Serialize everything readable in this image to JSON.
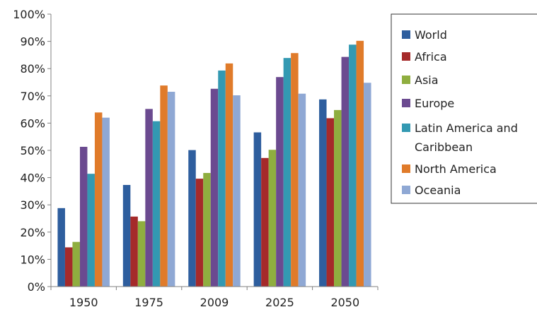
{
  "chart_data": {
    "type": "bar",
    "title": "",
    "xlabel": "",
    "ylabel": "",
    "ylim": [
      0,
      100
    ],
    "y_ticks": [
      "0%",
      "10%",
      "20%",
      "30%",
      "40%",
      "50%",
      "60%",
      "70%",
      "80%",
      "90%",
      "100%"
    ],
    "categories": [
      "1950",
      "1975",
      "2009",
      "2025",
      "2050"
    ],
    "grid": false,
    "legend_position": "right",
    "series": [
      {
        "name": "World",
        "color": "#2E5E9E",
        "values": [
          28.8,
          37.3,
          50.1,
          56.6,
          68.7
        ]
      },
      {
        "name": "Africa",
        "color": "#A52A2A",
        "values": [
          14.4,
          25.7,
          39.6,
          47.2,
          61.8
        ]
      },
      {
        "name": "Asia",
        "color": "#8FAE3F",
        "values": [
          16.4,
          24.0,
          41.7,
          50.2,
          64.8
        ]
      },
      {
        "name": "Europe",
        "color": "#6B4A90",
        "values": [
          51.3,
          65.2,
          72.6,
          76.9,
          84.3
        ]
      },
      {
        "name": "Latin America and Caribbean",
        "color": "#3399B2",
        "values": [
          41.4,
          60.7,
          79.3,
          83.9,
          88.8
        ]
      },
      {
        "name": "North America",
        "color": "#E07B2A",
        "values": [
          63.9,
          73.8,
          81.9,
          85.7,
          90.2
        ]
      },
      {
        "name": "Oceania",
        "color": "#8FA8D4",
        "values": [
          62.0,
          71.5,
          70.2,
          70.8,
          74.8
        ]
      }
    ],
    "legend_labels": [
      {
        "lines": [
          "World"
        ]
      },
      {
        "lines": [
          "Africa"
        ]
      },
      {
        "lines": [
          "Asia"
        ]
      },
      {
        "lines": [
          "Europe"
        ]
      },
      {
        "lines": [
          "Latin America and",
          "Caribbean"
        ]
      },
      {
        "lines": [
          "North America"
        ]
      },
      {
        "lines": [
          "Oceania"
        ]
      }
    ]
  }
}
